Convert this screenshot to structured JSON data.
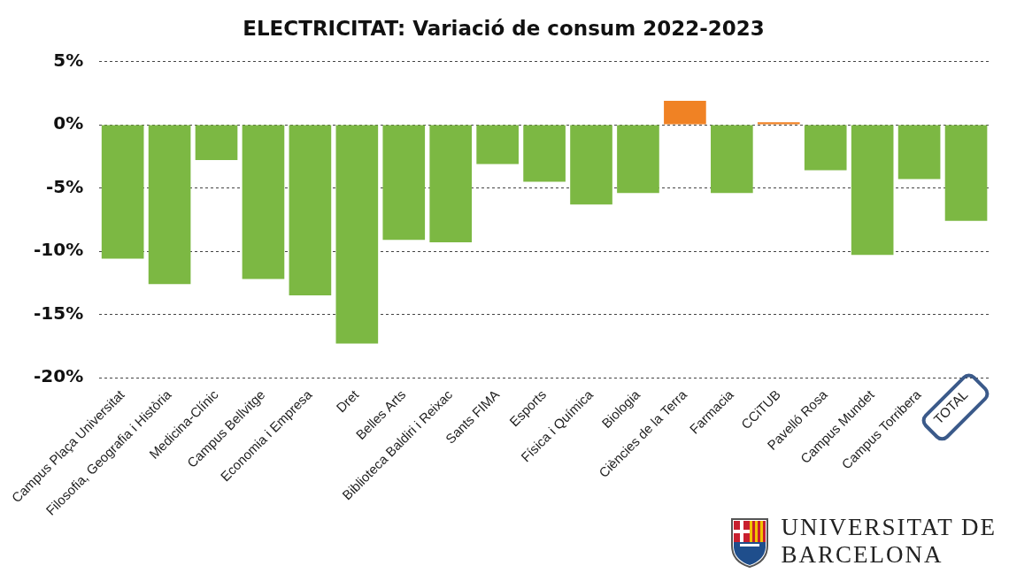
{
  "chart_data": {
    "type": "bar",
    "title": "ELECTRICITAT: Variació de consum 2022-2023",
    "categories": [
      "Campus Plaça Universitat",
      "Filosofia, Geografia i Història",
      "Medicina-Clínic",
      "Campus Bellvitge",
      "Economia i Empresa",
      "Dret",
      "Belles Arts",
      "Biblioteca Baldiri i Reixac",
      "Sants FIMA",
      "Esports",
      "Física i Química",
      "Biologia",
      "Ciències de la Terra",
      "Farmacia",
      "CCiTUB",
      "Pavelló Rosa",
      "Campus Mundet",
      "Campus Torribera",
      "TOTAL"
    ],
    "values": [
      -10.6,
      -12.6,
      -2.8,
      -12.2,
      -13.5,
      -17.3,
      -9.1,
      -9.3,
      -3.1,
      -4.5,
      -6.3,
      -5.4,
      1.9,
      -5.4,
      0.2,
      -3.6,
      -10.3,
      -4.3,
      -7.6
    ],
    "colors": [
      "#7cb843",
      "#7cb843",
      "#7cb843",
      "#7cb843",
      "#7cb843",
      "#7cb843",
      "#7cb843",
      "#7cb843",
      "#7cb843",
      "#7cb843",
      "#7cb843",
      "#7cb843",
      "#f08224",
      "#7cb843",
      "#f08224",
      "#7cb843",
      "#7cb843",
      "#7cb843",
      "#7cb843"
    ],
    "ylim": [
      -20,
      5
    ],
    "yticks": [
      {
        "value": -20,
        "label": "-20%"
      },
      {
        "value": -15,
        "label": "-15%"
      },
      {
        "value": -10,
        "label": "-10%"
      },
      {
        "value": -5,
        "label": "-5%"
      },
      {
        "value": 0,
        "label": "0%"
      },
      {
        "value": 5,
        "label": "5%"
      }
    ],
    "grid": true,
    "annotations": [
      "UNIVERSITAT DE",
      "BARCELONA"
    ]
  }
}
